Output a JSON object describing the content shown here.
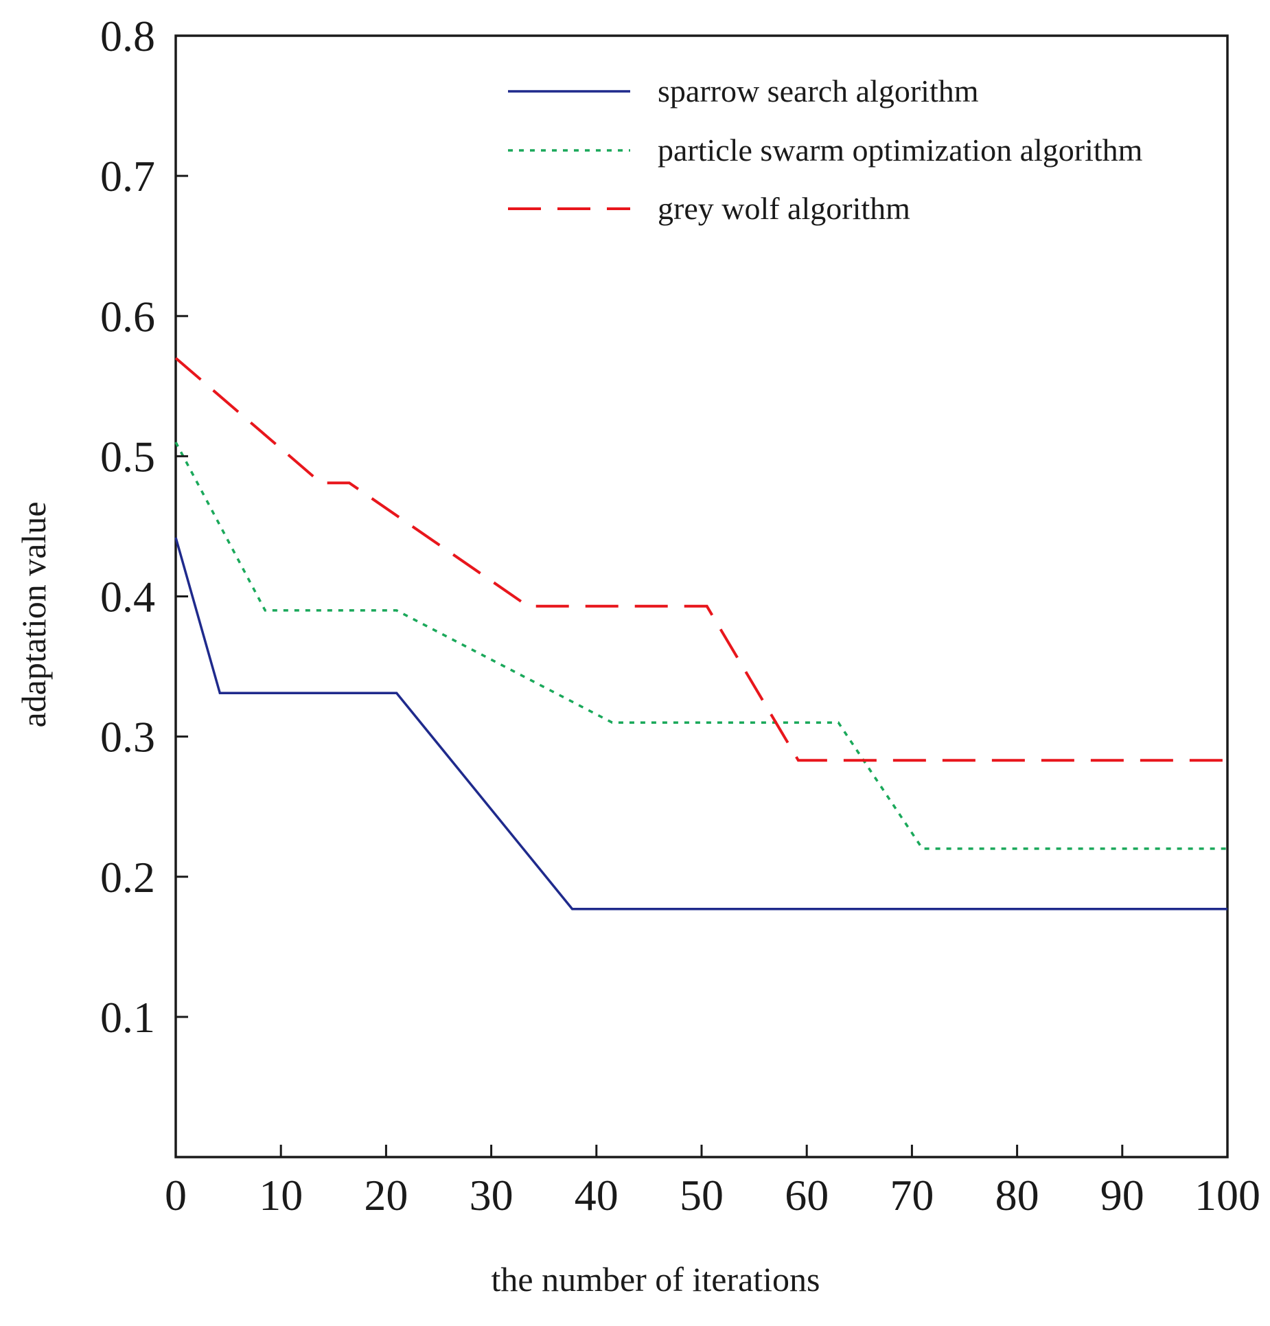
{
  "chart_data": {
    "type": "line",
    "title": "",
    "xlabel": "the number of iterations",
    "ylabel": "adaptation value",
    "xlim": [
      0,
      100
    ],
    "ylim": [
      0.0,
      0.8
    ],
    "x_ticks": [
      0,
      10,
      20,
      30,
      40,
      50,
      60,
      70,
      80,
      90,
      100
    ],
    "x_tick_labels": [
      "0",
      "10",
      "20",
      "30",
      "40",
      "50",
      "60",
      "70",
      "80",
      "90",
      "100"
    ],
    "y_ticks": [
      0.1,
      0.2,
      0.3,
      0.4,
      0.5,
      0.6,
      0.7,
      0.8
    ],
    "y_tick_labels": [
      "0.1",
      "0.2",
      "0.3",
      "0.4",
      "0.5",
      "0.6",
      "0.7",
      "0.8"
    ],
    "grid": false,
    "legend_position": "top-right",
    "series": [
      {
        "name": "sparrow search algorithm",
        "color": "#1f2a8c",
        "style": "solid",
        "x": [
          0,
          4.2,
          21,
          37.7,
          100
        ],
        "y": [
          0.442,
          0.331,
          0.331,
          0.177,
          0.177
        ]
      },
      {
        "name": "particle swarm optimization algorithm",
        "color": "#1aa85a",
        "style": "dotted",
        "x": [
          0,
          8.5,
          21,
          41.5,
          63,
          71,
          100
        ],
        "y": [
          0.51,
          0.39,
          0.39,
          0.31,
          0.31,
          0.22,
          0.22
        ]
      },
      {
        "name": "grey wolf algorithm",
        "color": "#e8161c",
        "style": "dashed",
        "x": [
          0,
          13.8,
          16.5,
          33.5,
          50.5,
          59.2,
          100
        ],
        "y": [
          0.57,
          0.481,
          0.481,
          0.393,
          0.393,
          0.283,
          0.283
        ]
      }
    ]
  }
}
